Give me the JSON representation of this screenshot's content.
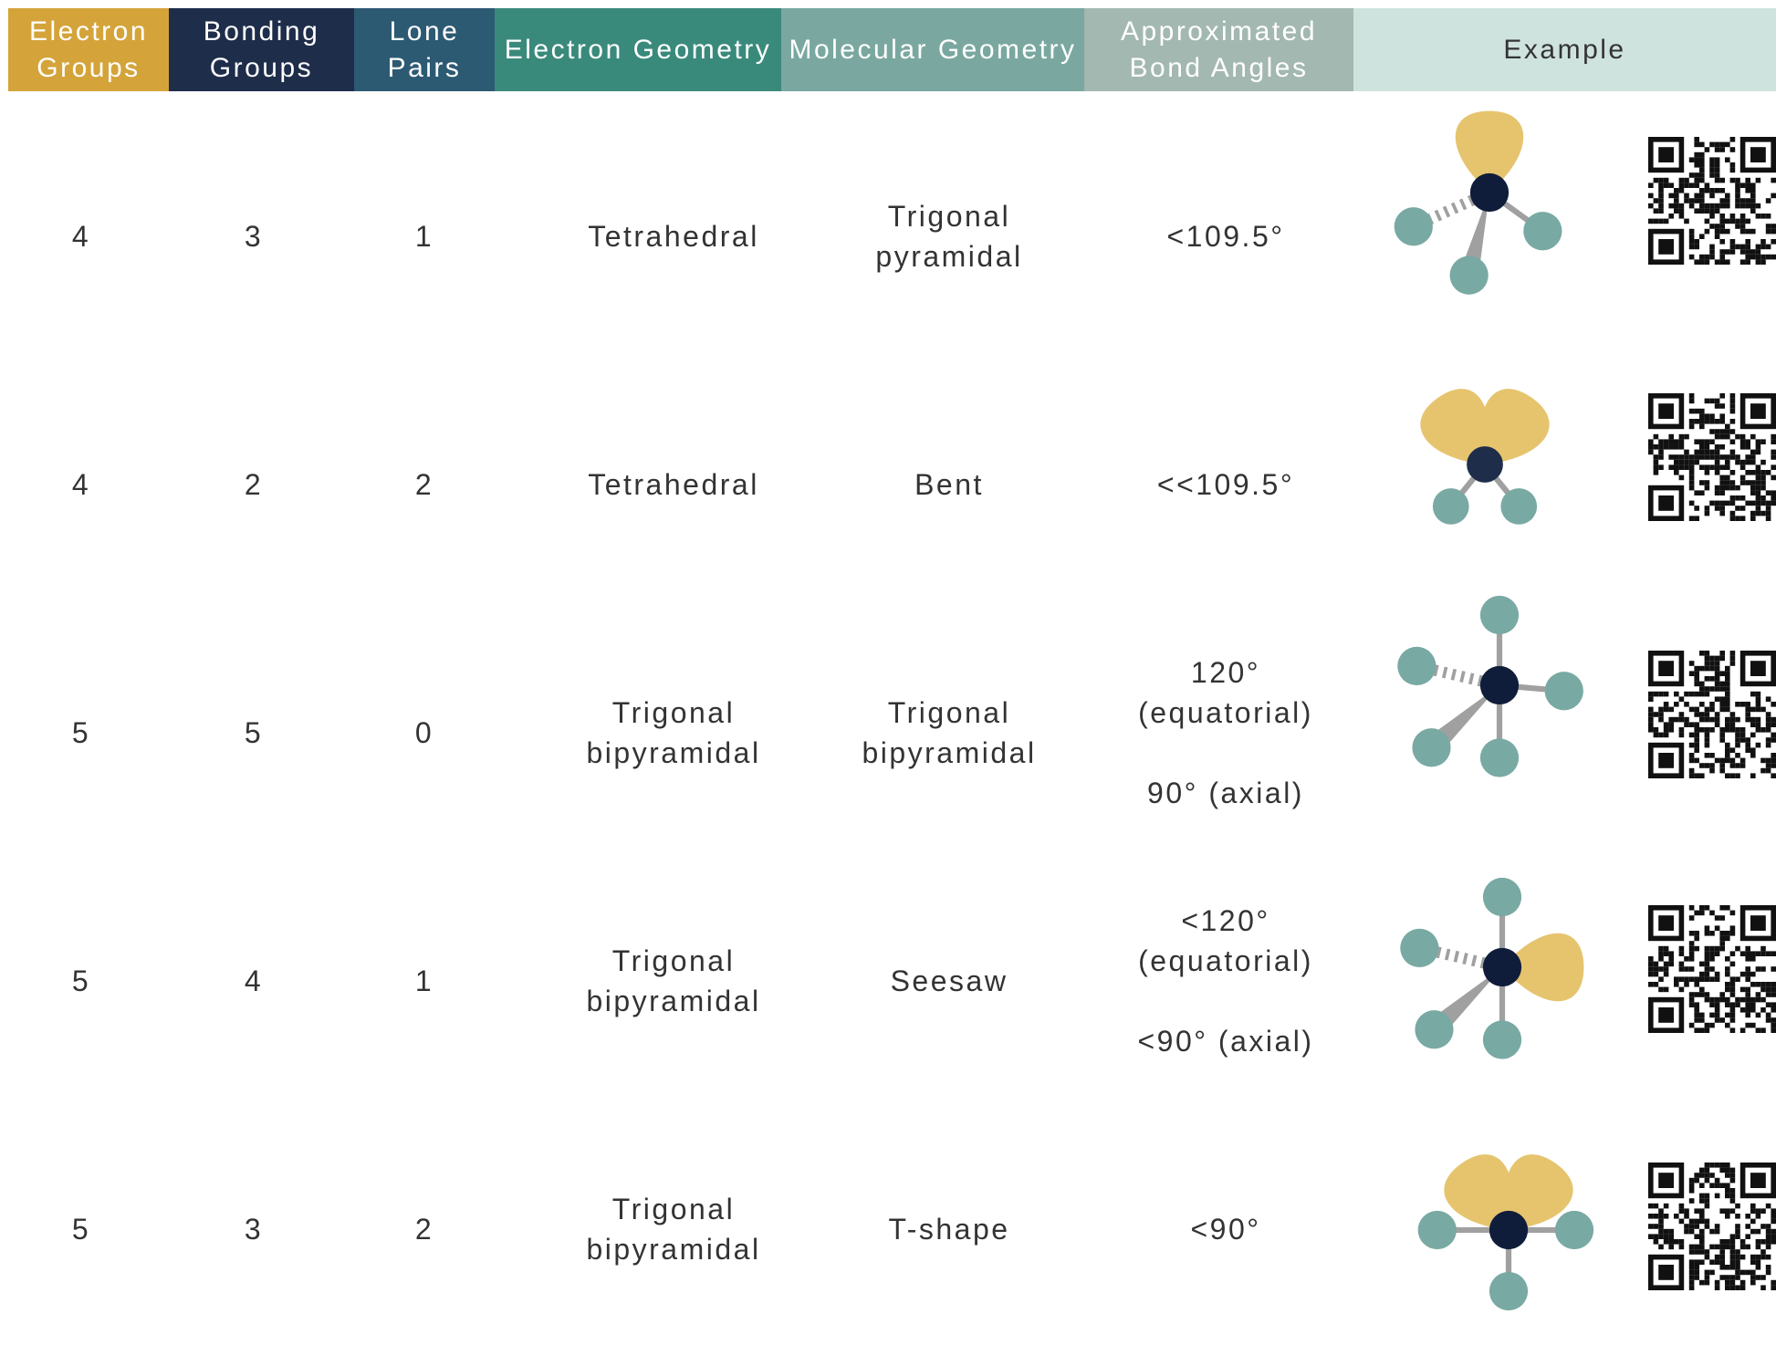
{
  "table": {
    "headers": [
      "Electron Groups",
      "Bonding Groups",
      "Lone Pairs",
      "Electron Geometry",
      "Molecular Geometry",
      "Approximated Bond Angles",
      "Example"
    ],
    "rows": [
      [
        "4",
        "3",
        "1",
        "Tetrahedral",
        "Trigonal pyramidal",
        [
          "<109.5°"
        ]
      ],
      [
        "4",
        "2",
        "2",
        "Tetrahedral",
        "Bent",
        [
          "<<109.5°"
        ]
      ],
      [
        "5",
        "5",
        "0",
        "Trigonal bipyramidal",
        "Trigonal bipyramidal",
        [
          "120° (equatorial)",
          "90° (axial)"
        ]
      ],
      [
        "5",
        "4",
        "1",
        "Trigonal bipyramidal",
        "Seesaw",
        [
          "<120° (equatorial)",
          "<90° (axial)"
        ]
      ],
      [
        "5",
        "3",
        "2",
        "Trigonal bipyramidal",
        "T-shape",
        [
          "<90°"
        ]
      ]
    ]
  }
}
